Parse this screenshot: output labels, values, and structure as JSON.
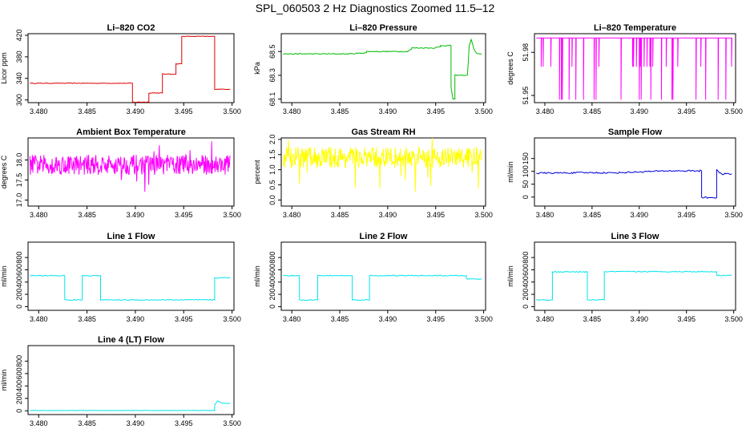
{
  "title": "SPL_060503  2 Hz Diagnostics Zoomed 11.5–12",
  "chart_data": [
    {
      "type": "line",
      "title": "Li–820 CO2",
      "ylabel": "Licor ppm",
      "color": "#dd0000",
      "xlim": [
        3.4789,
        3.5002
      ],
      "ylim": [
        295,
        423
      ],
      "xticks": [
        "3.480",
        "3.485",
        "3.490",
        "3.495",
        "3.500"
      ],
      "yticks": [
        "300",
        "340",
        "380",
        "420"
      ],
      "x": [
        3.4791,
        3.4897,
        3.4897,
        3.4914,
        3.4914,
        3.4928,
        3.4928,
        3.4942,
        3.4942,
        3.4948,
        3.4948,
        3.4982,
        3.4982,
        3.4998
      ],
      "y": [
        331,
        331,
        296,
        296,
        313,
        313,
        348,
        348,
        367,
        367,
        418,
        418,
        320,
        320
      ],
      "noise": 0.6
    },
    {
      "type": "line",
      "title": "Li–820 Pressure",
      "ylabel": "kPa",
      "color": "#00bb00",
      "xlim": [
        3.4789,
        3.5002
      ],
      "ylim": [
        68.07,
        68.65
      ],
      "xticks": [
        "3.480",
        "3.485",
        "3.490",
        "3.495",
        "3.500"
      ],
      "yticks": [
        "68.1",
        "68.3",
        "68.5"
      ],
      "x": [
        3.4791,
        3.486,
        3.4878,
        3.4878,
        3.492,
        3.4925,
        3.4925,
        3.4948,
        3.4955,
        3.4955,
        3.4966,
        3.4966,
        3.4968,
        3.497,
        3.497,
        3.4983,
        3.4985,
        3.4987,
        3.499,
        3.4993,
        3.4998
      ],
      "y": [
        68.48,
        68.48,
        68.49,
        68.5,
        68.5,
        68.52,
        68.53,
        68.53,
        68.54,
        68.55,
        68.55,
        68.2,
        68.1,
        68.1,
        68.3,
        68.3,
        68.55,
        68.6,
        68.52,
        68.48,
        68.48
      ],
      "noise": 0.004
    },
    {
      "type": "spikes",
      "title": "Li–820 Temperature",
      "ylabel": "degrees C",
      "color": "#ff00ff",
      "xlim": [
        3.4789,
        3.5002
      ],
      "ylim": [
        51.945,
        51.993
      ],
      "xticks": [
        "3.480",
        "3.485",
        "3.490",
        "3.495",
        "3.500"
      ],
      "yticks": [
        "51.95",
        "51.98"
      ],
      "x": [
        3.4791,
        3.4998
      ],
      "y": [
        51.99,
        51.99
      ],
      "low": [
        51.97,
        51.947
      ],
      "density": 0.18
    },
    {
      "type": "band",
      "title": "Ambient Box Temperature",
      "ylabel": "degrees C",
      "color": "#ff00ff",
      "xlim": [
        3.4789,
        3.5002
      ],
      "ylim": [
        16.85,
        18.55
      ],
      "xticks": [
        "3.480",
        "3.485",
        "3.490",
        "3.495",
        "3.500"
      ],
      "yticks": [
        "17.0",
        "17.5",
        "18.0"
      ],
      "x": [
        3.4791,
        3.4998
      ],
      "y": [
        17.88,
        17.88
      ],
      "amp": 0.25,
      "spike": 0.7
    },
    {
      "type": "band",
      "title": "Gas Stream RH",
      "ylabel": "percent",
      "color": "#ffff00",
      "xlim": [
        3.4789,
        3.5002
      ],
      "ylim": [
        -0.2,
        2.05
      ],
      "xticks": [
        "3.480",
        "3.485",
        "3.490",
        "3.495",
        "3.500"
      ],
      "yticks": [
        "0.0",
        "0.5",
        "1.0",
        "1.5",
        "2.0"
      ],
      "x": [
        3.4791,
        3.4998
      ],
      "y": [
        1.4,
        1.4
      ],
      "amp": 0.35,
      "spike": 1.2
    },
    {
      "type": "line",
      "title": "Sample Flow",
      "ylabel": "ml/min",
      "color": "#0000dd",
      "xlim": [
        3.4789,
        3.5002
      ],
      "ylim": [
        -35,
        230
      ],
      "xticks": [
        "3.480",
        "3.485",
        "3.490",
        "3.495",
        "3.500"
      ],
      "yticks": [
        "0",
        "50",
        "100",
        "150"
      ],
      "x": [
        3.4791,
        3.485,
        3.487,
        3.493,
        3.4966,
        3.4966,
        3.4982,
        3.4982,
        3.4985,
        3.4987,
        3.4998
      ],
      "y": [
        93,
        95,
        94,
        102,
        102,
        -2,
        -2,
        108,
        93,
        90,
        90
      ],
      "noise": 3
    },
    {
      "type": "line",
      "title": "Line 1 Flow",
      "ylabel": "ml/min",
      "color": "#00e5ee",
      "xlim": [
        3.4789,
        3.5002
      ],
      "ylim": [
        -60,
        1050
      ],
      "xticks": [
        "3.480",
        "3.485",
        "3.490",
        "3.495",
        "3.500"
      ],
      "yticks": [
        "0",
        "200",
        "400",
        "600",
        "800"
      ],
      "x": [
        3.4791,
        3.4827,
        3.4827,
        3.4845,
        3.4845,
        3.4864,
        3.4864,
        3.4982,
        3.4982,
        3.4998
      ],
      "y": [
        505,
        505,
        110,
        110,
        505,
        505,
        110,
        110,
        470,
        470
      ],
      "noise": 8
    },
    {
      "type": "line",
      "title": "Line 2 Flow",
      "ylabel": "ml/min",
      "color": "#00e5ee",
      "xlim": [
        3.4789,
        3.5002
      ],
      "ylim": [
        -60,
        1050
      ],
      "xticks": [
        "3.480",
        "3.485",
        "3.490",
        "3.495",
        "3.500"
      ],
      "yticks": [
        "0",
        "200",
        "400",
        "600",
        "800"
      ],
      "x": [
        3.4791,
        3.4808,
        3.4808,
        3.4827,
        3.4827,
        3.4863,
        3.4863,
        3.4881,
        3.4881,
        3.4982,
        3.4982,
        3.4998
      ],
      "y": [
        505,
        505,
        110,
        110,
        505,
        505,
        110,
        110,
        505,
        505,
        450,
        450
      ],
      "noise": 8
    },
    {
      "type": "line",
      "title": "Line 3 Flow",
      "ylabel": "ml/min",
      "color": "#00e5ee",
      "xlim": [
        3.4789,
        3.5002
      ],
      "ylim": [
        -60,
        1050
      ],
      "xticks": [
        "3.480",
        "3.485",
        "3.490",
        "3.495",
        "3.500"
      ],
      "yticks": [
        "0",
        "200",
        "400",
        "600",
        "800"
      ],
      "x": [
        3.4791,
        3.4808,
        3.4808,
        3.4845,
        3.4845,
        3.4863,
        3.4863,
        3.4982,
        3.4982,
        3.4998
      ],
      "y": [
        110,
        110,
        565,
        565,
        110,
        110,
        570,
        570,
        510,
        510
      ],
      "noise": 8
    },
    {
      "type": "line",
      "title": "Line 4 (LT) Flow",
      "ylabel": "ml/min",
      "color": "#00e5ee",
      "xlim": [
        3.4789,
        3.5002
      ],
      "ylim": [
        -60,
        1050
      ],
      "xticks": [
        "3.480",
        "3.485",
        "3.490",
        "3.495",
        "3.500"
      ],
      "yticks": [
        "0",
        "200",
        "400",
        "600",
        "800"
      ],
      "x": [
        3.4791,
        3.4982,
        3.4982,
        3.4985,
        3.499,
        3.4998
      ],
      "y": [
        5,
        5,
        95,
        160,
        120,
        120
      ],
      "noise": 2
    }
  ]
}
